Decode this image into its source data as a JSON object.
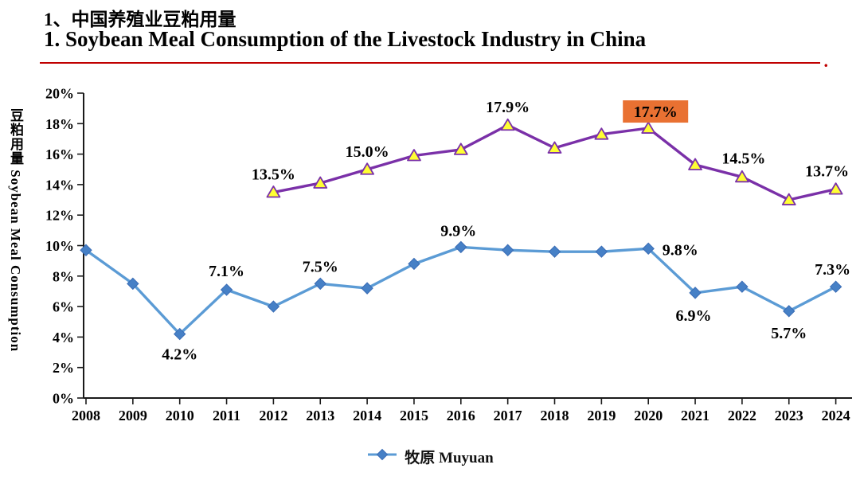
{
  "title": {
    "line1": "1、中国养殖业豆粕用量",
    "line2": "1. Soybean Meal Consumption of the Livestock Industry in China",
    "trailing_dot": ".",
    "color": "#C00000"
  },
  "chart_data": {
    "type": "line",
    "ylabel": "豆粕用量 Soybean Meal Consumption",
    "x": [
      2008,
      2009,
      2010,
      2011,
      2012,
      2013,
      2014,
      2015,
      2016,
      2017,
      2018,
      2019,
      2020,
      2021,
      2022,
      2023,
      2024
    ],
    "ylim": [
      0,
      20
    ],
    "ytick_step": 2,
    "ytick_labels": [
      "20%",
      "18%",
      "16%",
      "14%",
      "12%",
      "10%",
      "8%",
      "6%",
      "4%",
      "2%",
      "0%"
    ],
    "grid": false,
    "legend_position": "bottom",
    "series": [
      {
        "id": "muyuan",
        "name": "牧原 Muyuan",
        "color": "#5B9BD5",
        "marker": "diamond",
        "marker_fill": "#4680C6",
        "marker_stroke": "#3A6CB5",
        "x_start": 2008,
        "values": [
          9.7,
          7.5,
          4.2,
          7.1,
          6.0,
          7.5,
          7.2,
          8.8,
          9.9,
          9.7,
          9.6,
          9.6,
          9.8,
          6.9,
          7.3,
          5.7,
          7.3
        ],
        "annotations": [
          {
            "year": 2010,
            "text": "4.2%",
            "dx": 0,
            "dy": 32
          },
          {
            "year": 2011,
            "text": "7.1%",
            "dx": 0,
            "dy": -17
          },
          {
            "year": 2013,
            "text": "7.5%",
            "dx": 0,
            "dy": -15
          },
          {
            "year": 2016,
            "text": "9.9%",
            "dx": -3,
            "dy": -14
          },
          {
            "year": 2020,
            "text": "9.8%",
            "dx": 40,
            "dy": 8
          },
          {
            "year": 2021,
            "text": "6.9%",
            "dx": -2,
            "dy": 35
          },
          {
            "year": 2023,
            "text": "5.7%",
            "dx": 0,
            "dy": 34
          },
          {
            "year": 2024,
            "text": "7.3%",
            "dx": -4,
            "dy": -15
          }
        ]
      },
      {
        "id": "industry",
        "name": "",
        "color": "#7A30A8",
        "marker": "triangle",
        "marker_fill": "#FFFF33",
        "marker_stroke": "#7A30A8",
        "x_start": 2012,
        "values": [
          13.5,
          14.1,
          15.0,
          15.9,
          16.3,
          17.9,
          16.4,
          17.3,
          17.7,
          15.3,
          14.5,
          13.0,
          13.7
        ],
        "annotations": [
          {
            "year": 2012,
            "text": "13.5%",
            "dx": 0,
            "dy": -16
          },
          {
            "year": 2014,
            "text": "15.0%",
            "dx": 0,
            "dy": -16
          },
          {
            "year": 2017,
            "text": "17.9%",
            "dx": 0,
            "dy": -16
          },
          {
            "year": 2020,
            "text": "17.7%",
            "dx": 9,
            "dy": -14,
            "highlight": "#E97132"
          },
          {
            "year": 2022,
            "text": "14.5%",
            "dx": 2,
            "dy": -17
          },
          {
            "year": 2024,
            "text": "13.7%",
            "dx": -11,
            "dy": -16
          }
        ]
      }
    ]
  },
  "legend": {
    "label": "牧原 Muyuan"
  }
}
